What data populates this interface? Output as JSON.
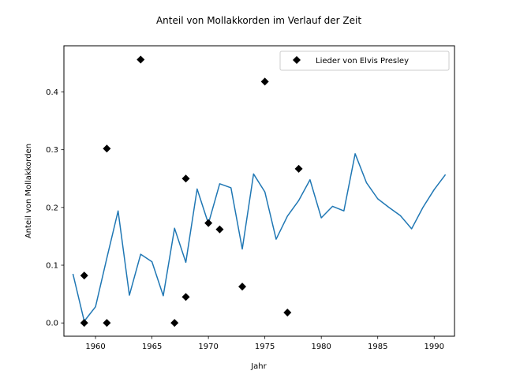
{
  "chart_data": {
    "type": "line",
    "title": "Anteil von Mollakkorden im Verlauf der Zeit",
    "xlabel": "Jahr",
    "ylabel": "Anteil von Mollakkorden",
    "xlim": [
      1957.2,
      1991.8
    ],
    "ylim": [
      -0.023,
      0.48
    ],
    "xticks": [
      1960,
      1965,
      1970,
      1975,
      1980,
      1985,
      1990
    ],
    "yticks": [
      0.0,
      0.1,
      0.2,
      0.3,
      0.4
    ],
    "ytick_labels": [
      "0.0",
      "0.1",
      "0.2",
      "0.3",
      "0.4"
    ],
    "grid": false,
    "legend": {
      "position": "top-right",
      "entries": [
        "Lieder von Elvis Presley"
      ]
    },
    "series": [
      {
        "kind": "line",
        "color": "#1f77b4",
        "x": [
          1958,
          1959,
          1960,
          1961,
          1962,
          1963,
          1964,
          1965,
          1966,
          1967,
          1968,
          1969,
          1970,
          1971,
          1972,
          1973,
          1974,
          1975,
          1976,
          1977,
          1978,
          1979,
          1980,
          1981,
          1982,
          1983,
          1984,
          1985,
          1986,
          1987,
          1988,
          1989,
          1990,
          1991
        ],
        "y": [
          0.085,
          0.003,
          0.028,
          0.112,
          0.194,
          0.048,
          0.119,
          0.106,
          0.047,
          0.164,
          0.105,
          0.232,
          0.172,
          0.241,
          0.234,
          0.128,
          0.258,
          0.227,
          0.145,
          0.185,
          0.212,
          0.248,
          0.182,
          0.202,
          0.194,
          0.293,
          0.243,
          0.215,
          0.2,
          0.186,
          0.163,
          0.2,
          0.231,
          0.257
        ]
      },
      {
        "kind": "scatter",
        "name": "Lieder von Elvis Presley",
        "color": "#000000",
        "marker": "diamond",
        "points": [
          [
            1959,
            0.082
          ],
          [
            1959,
            0.0
          ],
          [
            1961,
            0.302
          ],
          [
            1961,
            0.0
          ],
          [
            1964,
            0.456
          ],
          [
            1967,
            0.0
          ],
          [
            1968,
            0.25
          ],
          [
            1968,
            0.045
          ],
          [
            1970,
            0.173
          ],
          [
            1971,
            0.162
          ],
          [
            1973,
            0.063
          ],
          [
            1975,
            0.418
          ],
          [
            1977,
            0.018
          ],
          [
            1978,
            0.267
          ]
        ]
      }
    ]
  }
}
